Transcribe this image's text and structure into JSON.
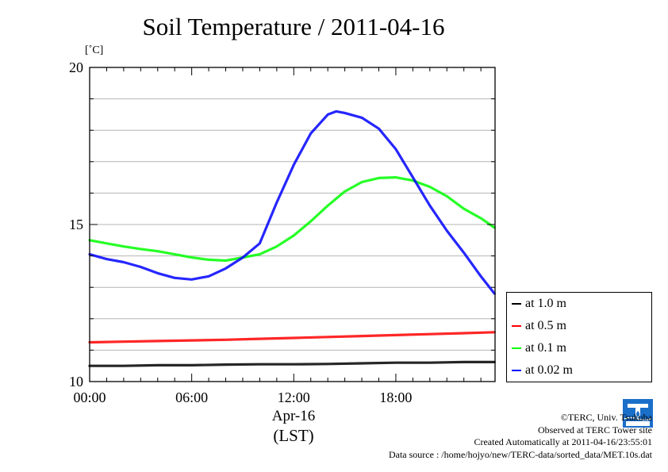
{
  "chart_data": {
    "type": "line",
    "title": "Soil Temperature / 2011-04-16",
    "ylabel": "[˚C]",
    "xlabel": "Apr-16",
    "xunit": "(LST)",
    "ylim": [
      10,
      20
    ],
    "yticks": [
      10,
      15,
      20
    ],
    "xlim": [
      0,
      23.833
    ],
    "xticks": [
      {
        "value": 0,
        "label": "00:00"
      },
      {
        "value": 6,
        "label": "06:00"
      },
      {
        "value": 12,
        "label": "12:00"
      },
      {
        "value": 18,
        "label": "18:00"
      }
    ],
    "grid": true,
    "legend_position": "bottom-right, outside plot",
    "series": [
      {
        "name": "at 1.0 m",
        "color": "#000000",
        "x": [
          0,
          2,
          4,
          6,
          8,
          10,
          12,
          14,
          16,
          18,
          20,
          22,
          23.8
        ],
        "y": [
          10.5,
          10.5,
          10.52,
          10.52,
          10.54,
          10.55,
          10.55,
          10.56,
          10.58,
          10.6,
          10.6,
          10.62,
          10.62
        ]
      },
      {
        "name": "at 0.5 m",
        "color": "#ff0000",
        "x": [
          0,
          2,
          4,
          6,
          8,
          10,
          12,
          14,
          16,
          18,
          20,
          22,
          23.8
        ],
        "y": [
          11.25,
          11.27,
          11.29,
          11.31,
          11.33,
          11.36,
          11.39,
          11.42,
          11.45,
          11.48,
          11.51,
          11.54,
          11.57
        ]
      },
      {
        "name": "at 0.1 m",
        "color": "#00ff00",
        "x": [
          0,
          1,
          2,
          3,
          4,
          5,
          6,
          7,
          8,
          9,
          10,
          11,
          12,
          13,
          14,
          15,
          16,
          17,
          18,
          19,
          20,
          21,
          22,
          23,
          23.8
        ],
        "y": [
          14.5,
          14.4,
          14.3,
          14.22,
          14.15,
          14.05,
          13.95,
          13.88,
          13.85,
          13.95,
          14.05,
          14.3,
          14.65,
          15.1,
          15.6,
          16.05,
          16.35,
          16.48,
          16.5,
          16.4,
          16.2,
          15.9,
          15.5,
          15.2,
          14.9
        ]
      },
      {
        "name": "at 0.02 m",
        "color": "#0000ff",
        "x": [
          0,
          1,
          2,
          3,
          4,
          5,
          6,
          7,
          8,
          9,
          10,
          11,
          12,
          13,
          14,
          14.5,
          15,
          16,
          17,
          18,
          19,
          20,
          21,
          22,
          23,
          23.8
        ],
        "y": [
          14.05,
          13.9,
          13.8,
          13.65,
          13.45,
          13.3,
          13.25,
          13.35,
          13.6,
          13.95,
          14.4,
          15.7,
          16.9,
          17.9,
          18.5,
          18.6,
          18.55,
          18.4,
          18.05,
          17.4,
          16.5,
          15.6,
          14.8,
          14.1,
          13.35,
          12.8
        ]
      }
    ]
  },
  "footer": {
    "copyright": "©TERC, Univ. Tsukuba",
    "observed": "Observed at TERC Tower site",
    "created": "Created Automatically at 2011-04-16/23:55:01",
    "source": "Data source : /home/hojyo/new/TERC-data/sorted_data/MET.10s.dat"
  },
  "logo": {
    "text": "TERC",
    "color": "#1a6fc9"
  }
}
